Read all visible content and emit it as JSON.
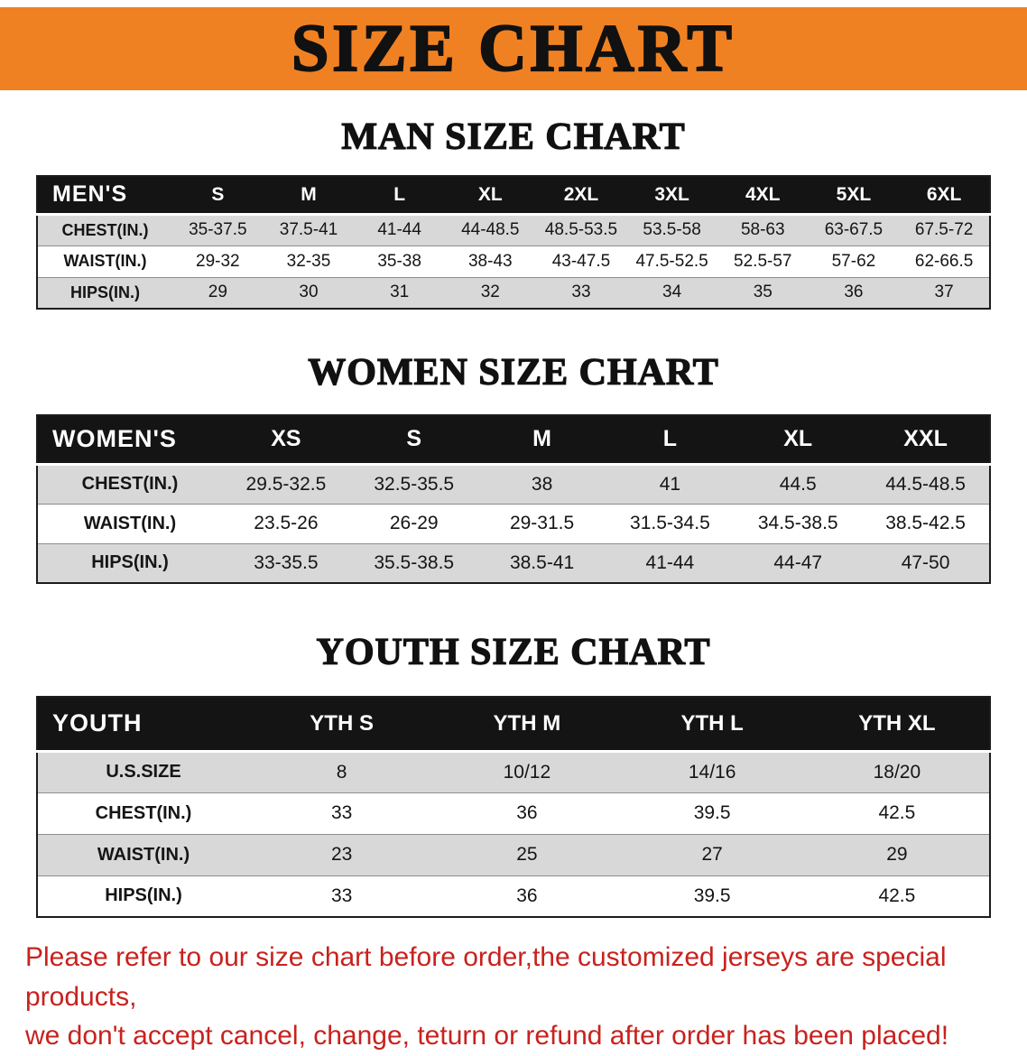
{
  "banner": {
    "title": "SIZE CHART"
  },
  "colors": {
    "banner_orange": "#f08122",
    "header_black": "#141414",
    "row_gray": "#d8d8d8",
    "disclaimer_red": "#c8221e"
  },
  "sections": [
    {
      "id": "men",
      "heading": "MAN SIZE CHART",
      "table": {
        "header": [
          "MEN'S",
          "S",
          "M",
          "L",
          "XL",
          "2XL",
          "3XL",
          "4XL",
          "5XL",
          "6XL"
        ],
        "rows": [
          {
            "label": "CHEST(IN.)",
            "values": [
              "35-37.5",
              "37.5-41",
              "41-44",
              "44-48.5",
              "48.5-53.5",
              "53.5-58",
              "58-63",
              "63-67.5",
              "67.5-72"
            ]
          },
          {
            "label": "WAIST(IN.)",
            "values": [
              "29-32",
              "32-35",
              "35-38",
              "38-43",
              "43-47.5",
              "47.5-52.5",
              "52.5-57",
              "57-62",
              "62-66.5"
            ]
          },
          {
            "label": "HIPS(IN.)",
            "values": [
              "29",
              "30",
              "31",
              "32",
              "33",
              "34",
              "35",
              "36",
              "37"
            ]
          }
        ]
      }
    },
    {
      "id": "women",
      "heading": "WOMEN SIZE CHART",
      "table": {
        "header": [
          "WOMEN'S",
          "XS",
          "S",
          "M",
          "L",
          "XL",
          "XXL"
        ],
        "rows": [
          {
            "label": "CHEST(IN.)",
            "values": [
              "29.5-32.5",
              "32.5-35.5",
              "38",
              "41",
              "44.5",
              "44.5-48.5"
            ]
          },
          {
            "label": "WAIST(IN.)",
            "values": [
              "23.5-26",
              "26-29",
              "29-31.5",
              "31.5-34.5",
              "34.5-38.5",
              "38.5-42.5"
            ]
          },
          {
            "label": "HIPS(IN.)",
            "values": [
              "33-35.5",
              "35.5-38.5",
              "38.5-41",
              "41-44",
              "44-47",
              "47-50"
            ]
          }
        ]
      }
    },
    {
      "id": "youth",
      "heading": "YOUTH SIZE CHART",
      "table": {
        "header": [
          "YOUTH",
          "YTH S",
          "YTH M",
          "YTH L",
          "YTH XL"
        ],
        "rows": [
          {
            "label": "U.S.SIZE",
            "values": [
              "8",
              "10/12",
              "14/16",
              "18/20"
            ]
          },
          {
            "label": "CHEST(IN.)",
            "values": [
              "33",
              "36",
              "39.5",
              "42.5"
            ]
          },
          {
            "label": "WAIST(IN.)",
            "values": [
              "23",
              "25",
              "27",
              "29"
            ]
          },
          {
            "label": "HIPS(IN.)",
            "values": [
              "33",
              "36",
              "39.5",
              "42.5"
            ]
          }
        ]
      }
    }
  ],
  "disclaimer": {
    "line1": "Please refer to our size chart before order,the customized jerseys are special products,",
    "line2": "we don't accept cancel, change, teturn or refund after order has been placed!"
  }
}
